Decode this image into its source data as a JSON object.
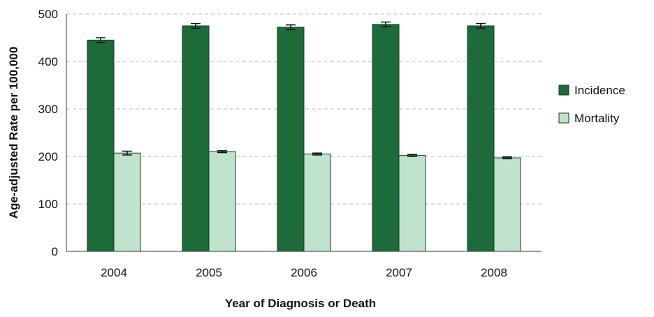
{
  "chart_data": {
    "type": "bar",
    "categories": [
      "2004",
      "2005",
      "2006",
      "2007",
      "2008"
    ],
    "series": [
      {
        "name": "Incidence",
        "values": [
          445,
          475,
          472,
          478,
          475
        ],
        "error": [
          5,
          5,
          5,
          5,
          5
        ],
        "color": "#1e6b3a"
      },
      {
        "name": "Mortality",
        "values": [
          207,
          210,
          205,
          202,
          197
        ],
        "error": [
          4,
          2,
          2,
          2,
          2
        ],
        "color": "#bfe3cc"
      }
    ],
    "title": "",
    "xlabel": "Year of Diagnosis or Death",
    "ylabel": "Age-adjusted Rate per 100,000",
    "ylim": [
      0,
      500
    ],
    "yticks": [
      0,
      100,
      200,
      300,
      400,
      500
    ],
    "grid": "horizontal-dashed",
    "legend_position": "right"
  }
}
